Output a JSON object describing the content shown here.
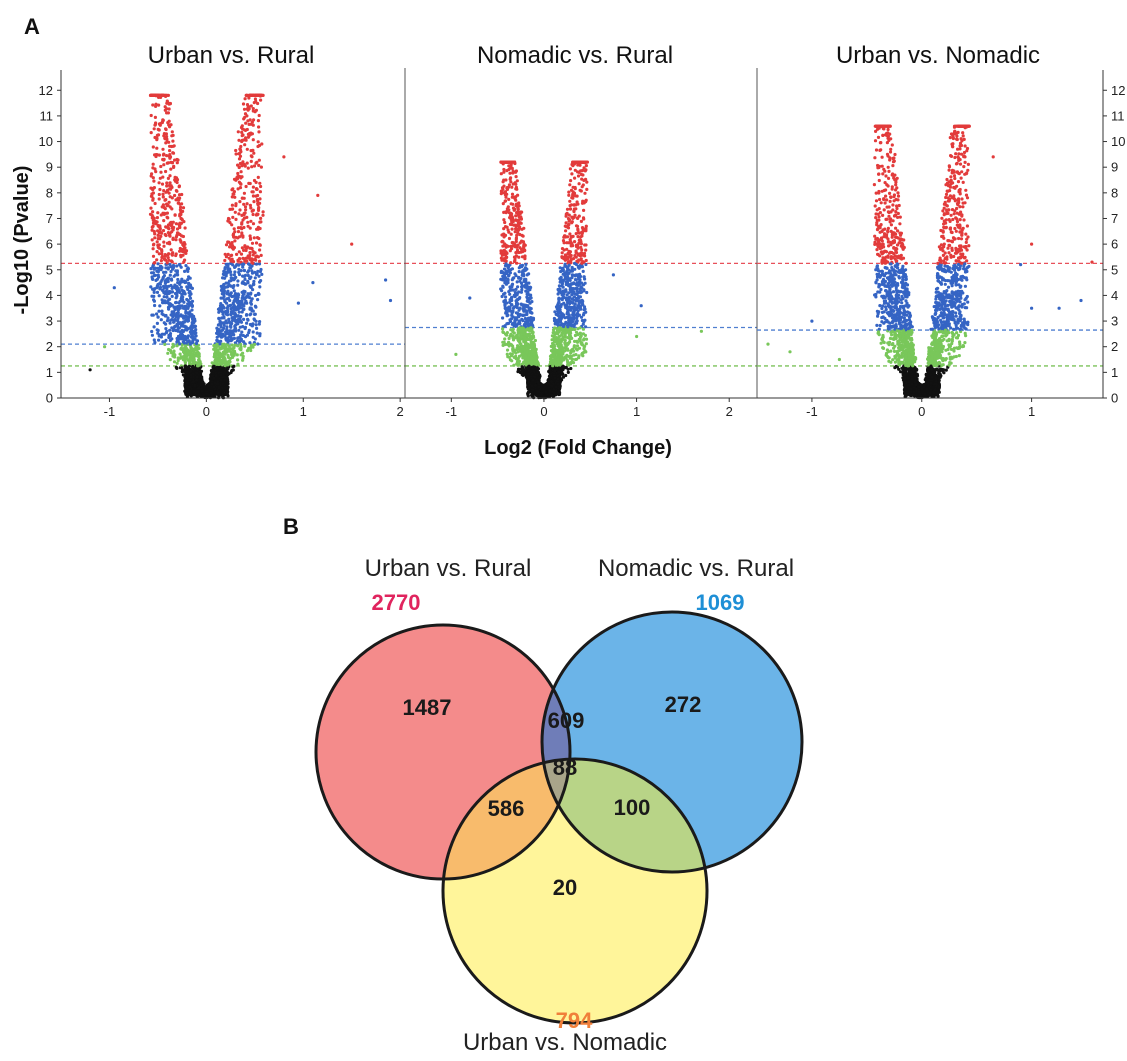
{
  "panel_labels": {
    "a": "A",
    "b": "B"
  },
  "chart_data": [
    {
      "type": "scatter",
      "title": "Urban vs. Rural",
      "xlabel": "Log2 (Fold Change)",
      "ylabel": "-Log10 (Pvalue)",
      "xlim": [
        -1.5,
        2.05
      ],
      "ylim": [
        0,
        12.4
      ],
      "x_ticks": [
        -1,
        0,
        1,
        2
      ],
      "y_ticks": [
        0,
        1,
        2,
        3,
        4,
        5,
        6,
        7,
        8,
        9,
        10,
        11,
        12
      ],
      "thresholds": [
        {
          "y": 5.25,
          "color": "#e8505a"
        },
        {
          "y": 2.1,
          "color": "#4f7fd0"
        },
        {
          "y": 1.25,
          "color": "#7cc25a"
        }
      ],
      "point_colors": {
        "above_top": "#e23b3b",
        "between_top_mid": "#3564c4",
        "between_mid_low": "#79c75a",
        "below_low": "#111111"
      },
      "distribution": {
        "spread_x": 0.28,
        "max_y": 11.8,
        "outliers": [
          [
            -0.95,
            4.3
          ],
          [
            -1.05,
            2.0
          ],
          [
            -1.2,
            1.1
          ],
          [
            0.8,
            9.4
          ],
          [
            1.1,
            4.5
          ],
          [
            1.15,
            7.9
          ],
          [
            1.5,
            6.0
          ],
          [
            1.85,
            4.6
          ],
          [
            1.9,
            3.8
          ],
          [
            0.95,
            3.7
          ]
        ]
      }
    },
    {
      "type": "scatter",
      "title": "Nomadic vs. Rural",
      "xlabel": "Log2 (Fold Change)",
      "ylabel": "",
      "xlim": [
        -1.5,
        2.3
      ],
      "ylim": [
        0,
        12.4
      ],
      "x_ticks": [
        -1,
        0,
        1,
        2
      ],
      "y_ticks": [],
      "thresholds": [
        {
          "y": 5.25,
          "color": "#e8505a"
        },
        {
          "y": 2.75,
          "color": "#4f7fd0"
        },
        {
          "y": 1.25,
          "color": "#7cc25a"
        }
      ],
      "point_colors": {
        "above_top": "#e23b3b",
        "between_top_mid": "#3564c4",
        "between_mid_low": "#79c75a",
        "below_low": "#111111"
      },
      "distribution": {
        "spread_x": 0.22,
        "max_y": 9.2,
        "outliers": [
          [
            -0.95,
            1.7
          ],
          [
            0.75,
            4.8
          ],
          [
            1.05,
            3.6
          ],
          [
            1.7,
            2.6
          ],
          [
            1.0,
            2.4
          ],
          [
            -0.8,
            3.9
          ]
        ]
      }
    },
    {
      "type": "scatter",
      "title": "Urban vs. Nomadic",
      "xlabel": "",
      "ylabel": "",
      "xlim": [
        -1.5,
        1.65
      ],
      "ylim": [
        0,
        12.4
      ],
      "x_ticks": [
        -1,
        0,
        1
      ],
      "y_ticks": [
        0,
        1,
        2,
        3,
        4,
        5,
        6,
        7,
        8,
        9,
        10,
        11,
        12
      ],
      "thresholds": [
        {
          "y": 5.25,
          "color": "#e8505a"
        },
        {
          "y": 2.65,
          "color": "#4f7fd0"
        },
        {
          "y": 1.25,
          "color": "#7cc25a"
        }
      ],
      "point_colors": {
        "above_top": "#e23b3b",
        "between_top_mid": "#3564c4",
        "between_mid_low": "#79c75a",
        "below_low": "#111111"
      },
      "distribution": {
        "spread_x": 0.2,
        "max_y": 10.6,
        "outliers": [
          [
            -1.4,
            2.1
          ],
          [
            -1.2,
            1.8
          ],
          [
            -1.0,
            3.0
          ],
          [
            -0.75,
            1.5
          ],
          [
            0.65,
            9.4
          ],
          [
            0.9,
            5.2
          ],
          [
            1.0,
            6.0
          ],
          [
            1.0,
            3.5
          ],
          [
            1.25,
            3.5
          ],
          [
            1.45,
            3.8
          ],
          [
            1.55,
            5.3
          ]
        ]
      }
    },
    {
      "type": "venn",
      "sets": [
        {
          "name": "Urban vs. Rural",
          "total": "2770",
          "total_color": "#e0245e",
          "fill": "#f48b8b"
        },
        {
          "name": "Nomadic vs. Rural",
          "total": "1069",
          "total_color": "#1e8fd6",
          "fill": "#6bb4e8"
        },
        {
          "name": "Urban vs. Nomadic",
          "total": "794",
          "total_color": "#f07f3a",
          "fill": "#fff59a"
        }
      ],
      "regions": {
        "urban_rural_only": "1487",
        "nomadic_rural_only": "272",
        "urban_nomadic_only": "20",
        "ur_nr": "609",
        "ur_un": "586",
        "nr_un": "100",
        "all_three": "88"
      }
    }
  ]
}
